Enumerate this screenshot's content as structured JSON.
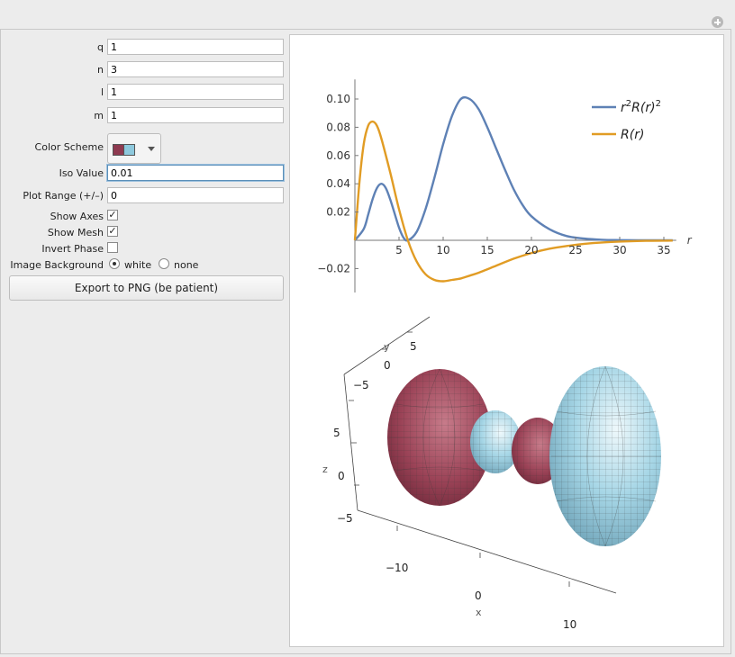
{
  "controls": {
    "q": {
      "label": "q",
      "value": "1"
    },
    "n": {
      "label": "n",
      "value": "3"
    },
    "l": {
      "label": "l",
      "value": "1"
    },
    "m": {
      "label": "m",
      "value": "1"
    },
    "color_scheme": {
      "label": "Color Scheme",
      "swatches": [
        "#8e3a50",
        "#8ec9dd"
      ]
    },
    "iso_value": {
      "label": "Iso Value",
      "value": "0.01"
    },
    "plot_range": {
      "label": "Plot Range (+/–)",
      "value": "0"
    },
    "show_axes": {
      "label": "Show Axes",
      "checked": true,
      "mark": "✓"
    },
    "show_mesh": {
      "label": "Show Mesh",
      "checked": true,
      "mark": "✓"
    },
    "invert_phase": {
      "label": "Invert Phase",
      "checked": false,
      "mark": ""
    },
    "image_background": {
      "label": "Image Background",
      "options": [
        "white",
        "none"
      ],
      "selected": "white"
    },
    "export_label": "Export to PNG (be patient)"
  },
  "chart_data": {
    "type": "line",
    "title": "",
    "xlabel": "r",
    "ylabel": "",
    "xlim": [
      0,
      36
    ],
    "ylim": [
      -0.035,
      0.11
    ],
    "x_ticks": [
      "5",
      "10",
      "15",
      "20",
      "25",
      "30",
      "35"
    ],
    "y_ticks": [
      "0.10",
      "0.08",
      "0.06",
      "0.04",
      "0.02",
      "−0.02"
    ],
    "legend_position": "top-right",
    "series": [
      {
        "name": "r²R(r)²",
        "color": "#5e81b5",
        "x": [
          0,
          1,
          1.5,
          2,
          2.5,
          3,
          3.5,
          4,
          4.5,
          5,
          5.5,
          6,
          7,
          8,
          9,
          10,
          11,
          12,
          13,
          14,
          15,
          16,
          17,
          18,
          19,
          20,
          22,
          24,
          26,
          28,
          30,
          33,
          36
        ],
        "y": [
          0,
          0.008,
          0.018,
          0.029,
          0.037,
          0.04,
          0.037,
          0.029,
          0.019,
          0.009,
          0.002,
          0.0,
          0.006,
          0.022,
          0.044,
          0.068,
          0.088,
          0.1,
          0.1,
          0.093,
          0.08,
          0.065,
          0.05,
          0.036,
          0.025,
          0.017,
          0.008,
          0.003,
          0.0012,
          0.0004,
          0.0001,
          0.0,
          0.0
        ]
      },
      {
        "name": "R(r)",
        "color": "#e19c24",
        "x": [
          0,
          0.5,
          1,
          1.5,
          2,
          2.5,
          3,
          4,
          5,
          6,
          7,
          8,
          9,
          10,
          11,
          12,
          13,
          14,
          16,
          18,
          20,
          22,
          24,
          26,
          28,
          30,
          33,
          36
        ],
        "y": [
          0,
          0.04,
          0.068,
          0.081,
          0.084,
          0.081,
          0.072,
          0.048,
          0.022,
          0.0,
          -0.015,
          -0.024,
          -0.028,
          -0.029,
          -0.028,
          -0.027,
          -0.025,
          -0.023,
          -0.018,
          -0.013,
          -0.009,
          -0.006,
          -0.004,
          -0.0025,
          -0.0015,
          -0.0009,
          -0.0004,
          -0.0002
        ]
      }
    ]
  },
  "plot3d": {
    "axis_labels": {
      "x": "x",
      "y": "y",
      "z": "z"
    },
    "x_ticks": [
      "−10",
      "0",
      "10"
    ],
    "y_ticks": [
      "5",
      "0",
      "−5"
    ],
    "z_ticks": [
      "5",
      "0",
      "−5"
    ],
    "colors": {
      "negative": "#9b4357",
      "positive": "#a6d6e6"
    }
  }
}
